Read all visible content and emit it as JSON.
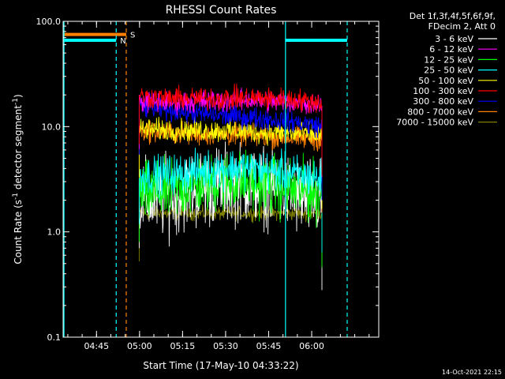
{
  "chart_data": {
    "type": "line",
    "title": "RHESSI Count Rates",
    "xlabel": "Start Time (17-May-10 04:33:22)",
    "ylabel": "Count Rate (s⁻¹ detector segment⁻¹)",
    "ylabel_parts": [
      "Count Rate (s",
      "-1",
      " detector segment",
      "-1",
      ")"
    ],
    "yscale": "log",
    "ylim": [
      0.1,
      100
    ],
    "xlim_minutes": [
      0,
      110
    ],
    "x_ticks": [
      {
        "label": "04:45",
        "t": 11.63
      },
      {
        "label": "05:00",
        "t": 26.63
      },
      {
        "label": "05:15",
        "t": 41.63
      },
      {
        "label": "05:30",
        "t": 56.63
      },
      {
        "label": "05:45",
        "t": 71.63
      },
      {
        "label": "06:00",
        "t": 86.63
      }
    ],
    "y_ticks": [
      {
        "label": "0.1",
        "v": 0.1
      },
      {
        "label": "1.0",
        "v": 1.0
      },
      {
        "label": "10.0",
        "v": 10.0
      },
      {
        "label": "100.0",
        "v": 100.0
      }
    ],
    "legend_header": [
      "Det 1f,3f,4f,5f,6f,9f,",
      "FDecim 2, Att 0"
    ],
    "legend_position": "right",
    "series": [
      {
        "name": "3 - 6 keV",
        "color": "#ffffff",
        "t_start": 26.5,
        "t_end": 90.2,
        "values": [
          2.0,
          2.1,
          2.5,
          2.8,
          2.9,
          2.7,
          2.2,
          2.0
        ]
      },
      {
        "name": "6 - 12 keV",
        "color": "#ff00ff",
        "t_start": 26.5,
        "t_end": 90.2,
        "values": [
          17.5,
          17.0,
          17.3,
          17.5,
          17.8,
          17.5,
          16.8,
          16.5
        ]
      },
      {
        "name": "12 - 25 keV",
        "color": "#00ff00",
        "t_start": 26.5,
        "t_end": 90.2,
        "values": [
          2.3,
          2.4,
          2.7,
          3.0,
          3.0,
          2.8,
          2.5,
          2.3
        ]
      },
      {
        "name": "25 - 50 keV",
        "color": "#00ffff",
        "t_start": 26.5,
        "t_end": 90.2,
        "values": [
          3.4,
          3.5,
          3.7,
          4.0,
          4.1,
          3.8,
          3.5,
          3.2
        ]
      },
      {
        "name": "50 - 100 keV",
        "color": "#ffff00",
        "t_start": 26.5,
        "t_end": 90.2,
        "values": [
          9.5,
          9.3,
          9.2,
          9.1,
          9.0,
          8.8,
          8.6,
          8.3
        ]
      },
      {
        "name": "100 - 300 keV",
        "color": "#ff0000",
        "t_start": 26.5,
        "t_end": 90.2,
        "values": [
          19.5,
          18.5,
          18.5,
          18.5,
          18.8,
          18.5,
          18.0,
          17.0
        ]
      },
      {
        "name": "300 - 800 keV",
        "color": "#0000ff",
        "t_start": 26.5,
        "t_end": 90.2,
        "values": [
          15.5,
          14.5,
          13.5,
          12.8,
          12.3,
          11.8,
          11.0,
          10.0
        ]
      },
      {
        "name": "800 - 7000 keV",
        "color": "#ff8000",
        "t_start": 26.5,
        "t_end": 90.2,
        "values": [
          9.3,
          8.8,
          8.5,
          8.4,
          8.3,
          8.0,
          7.8,
          7.6
        ]
      },
      {
        "name": "7000 - 15000 keV",
        "color": "#808000",
        "t_start": 26.5,
        "t_end": 90.2,
        "values": [
          1.5,
          1.5,
          1.5,
          1.5,
          1.5,
          1.5,
          1.5,
          1.5
        ]
      }
    ],
    "annotations": [
      {
        "type": "flag_bar",
        "label": "S",
        "color": "#ff8000",
        "t_start": 0.3,
        "t_end": 22.0,
        "level": 75
      },
      {
        "type": "flag_bar",
        "label": "N",
        "color": "#00ffff",
        "t_start": 0.3,
        "t_end": 18.5,
        "level": 66
      },
      {
        "type": "flag_bar",
        "label": "",
        "color": "#00ffff",
        "t_start": 77.5,
        "t_end": 99.0,
        "level": 66
      },
      {
        "type": "vline",
        "color": "#00ffff",
        "style": "solid",
        "t": 0.3
      },
      {
        "type": "vline",
        "color": "#00ffff",
        "style": "dashed",
        "t": 18.5
      },
      {
        "type": "vline",
        "color": "#ff8000",
        "style": "dashed",
        "t": 22.0
      },
      {
        "type": "vline",
        "color": "#00ffff",
        "style": "solid",
        "t": 77.5
      },
      {
        "type": "vline",
        "color": "#00ffff",
        "style": "dashed",
        "t": 99.0
      }
    ],
    "timestamp": "14-Oct-2021 22:15"
  }
}
